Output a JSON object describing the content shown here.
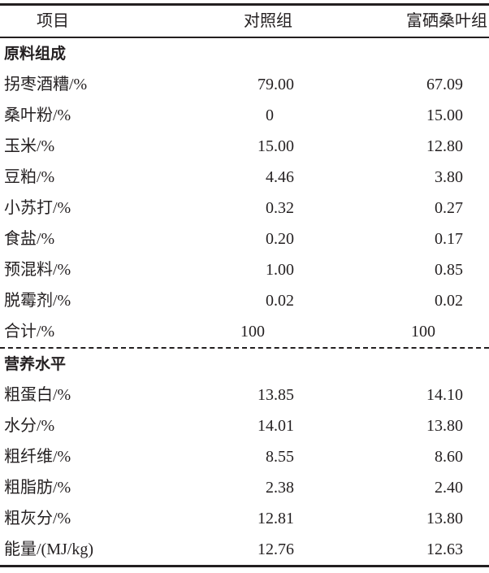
{
  "header": {
    "item": "项目",
    "control": "对照组",
    "treatment": "富硒桑叶组"
  },
  "sections": [
    {
      "title": "原料组成",
      "rows": [
        {
          "label": "拐枣酒糟/%",
          "control": "79.00",
          "treatment": "67.09"
        },
        {
          "label": "桑叶粉/%",
          "control": "0",
          "treatment": "15.00"
        },
        {
          "label": "玉米/%",
          "control": "15.00",
          "treatment": "12.80"
        },
        {
          "label": "豆粕/%",
          "control": "4.46",
          "treatment": "3.80"
        },
        {
          "label": "小苏打/%",
          "control": "0.32",
          "treatment": "0.27"
        },
        {
          "label": "食盐/%",
          "control": "0.20",
          "treatment": "0.17"
        },
        {
          "label": "预混料/%",
          "control": "1.00",
          "treatment": "0.85"
        },
        {
          "label": "脱霉剂/%",
          "control": "0.02",
          "treatment": "0.02"
        }
      ],
      "total": {
        "label": "合计/%",
        "control": "100",
        "treatment": "100"
      }
    },
    {
      "title": "营养水平",
      "rows": [
        {
          "label": "粗蛋白/%",
          "control": "13.85",
          "treatment": "14.10"
        },
        {
          "label": "水分/%",
          "control": "14.01",
          "treatment": "13.80"
        },
        {
          "label": "粗纤维/%",
          "control": "8.55",
          "treatment": "8.60"
        },
        {
          "label": "粗脂肪/%",
          "control": "2.38",
          "treatment": "2.40"
        },
        {
          "label": "粗灰分/%",
          "control": "12.81",
          "treatment": "13.80"
        },
        {
          "label": "能量/(MJ/kg)",
          "control": "12.76",
          "treatment": "12.63"
        }
      ]
    }
  ]
}
